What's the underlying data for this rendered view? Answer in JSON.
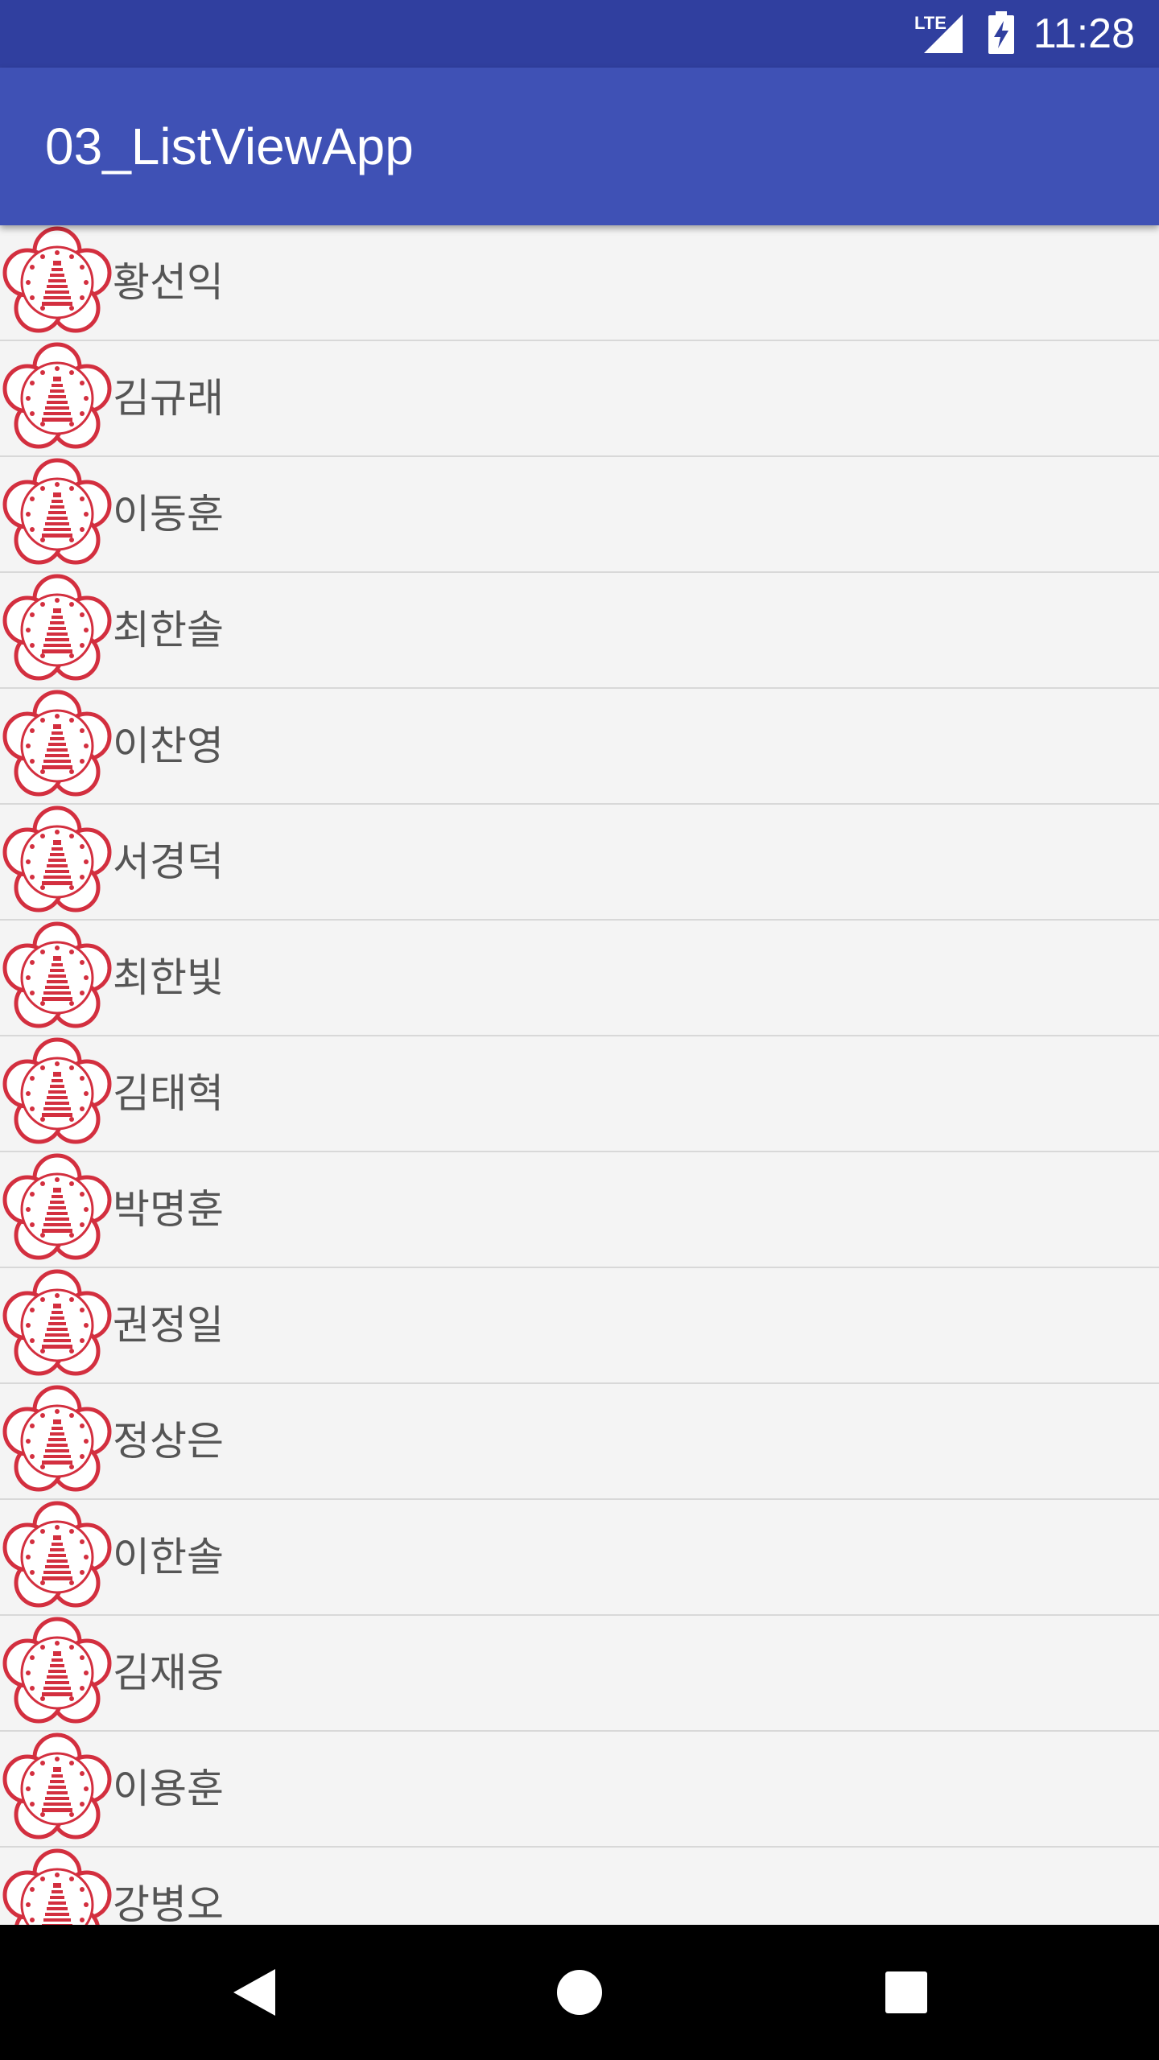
{
  "status": {
    "network_label": "LTE",
    "time": "11:28"
  },
  "app_bar": {
    "title": "03_ListViewApp"
  },
  "list": {
    "items": [
      {
        "name": "황선익"
      },
      {
        "name": "김규래"
      },
      {
        "name": "이동훈"
      },
      {
        "name": "최한솔"
      },
      {
        "name": "이찬영"
      },
      {
        "name": "서경덕"
      },
      {
        "name": "최한빛"
      },
      {
        "name": "김태혁"
      },
      {
        "name": "박명훈"
      },
      {
        "name": "권정일"
      },
      {
        "name": "정상은"
      },
      {
        "name": "이한솔"
      },
      {
        "name": "김재웅"
      },
      {
        "name": "이용훈"
      },
      {
        "name": "강병오"
      }
    ]
  },
  "icons": {
    "avatar": "emblem-icon",
    "nav_back": "back-triangle-icon",
    "nav_home": "home-circle-icon",
    "nav_recents": "recents-square-icon"
  },
  "colors": {
    "status_bar": "#303F9F",
    "app_bar": "#3F51B5",
    "emblem": "#D32F3F",
    "text": "#555555"
  }
}
